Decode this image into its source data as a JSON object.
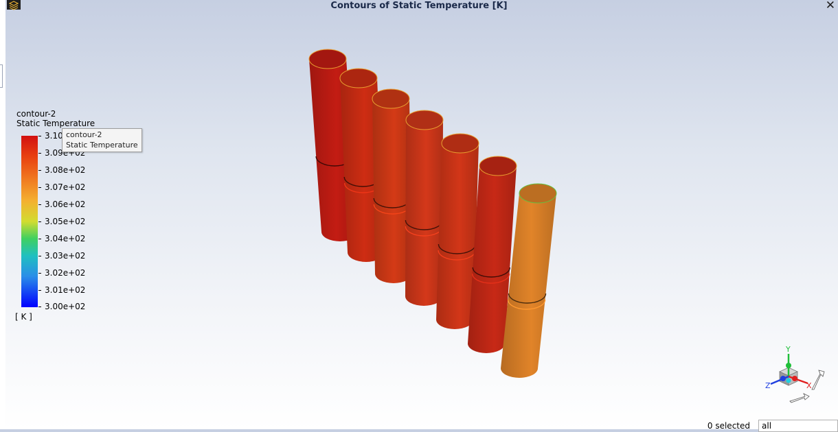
{
  "window": {
    "title": "Contours of Static Temperature [K]",
    "close_icon": "close-icon",
    "logo_icon": "app-logo-icon"
  },
  "legend": {
    "name": "contour-2",
    "variable": "Static Temperature",
    "units": "[ K ]",
    "ticks": [
      "3.10e+02",
      "3.09e+02",
      "3.08e+02",
      "3.07e+02",
      "3.06e+02",
      "3.05e+02",
      "3.04e+02",
      "3.03e+02",
      "3.02e+02",
      "3.01e+02",
      "3.00e+02"
    ],
    "colormap": [
      "#d21010",
      "#f07820",
      "#f4b030",
      "#d2dc30",
      "#40d060",
      "#20c0c0",
      "#2a8ee8",
      "#0000ff"
    ]
  },
  "tooltip": {
    "line1": "contour-2",
    "line2": "Static Temperature"
  },
  "scene": {
    "cylinders": [
      {
        "color": "#b51a12"
      },
      {
        "color": "#bf2a12"
      },
      {
        "color": "#c43614"
      },
      {
        "color": "#c43418"
      },
      {
        "color": "#c23216"
      },
      {
        "color": "#b82614"
      },
      {
        "color": "#d07a26"
      }
    ]
  },
  "triad": {
    "x_label": "X",
    "y_label": "Y",
    "z_label": "Z"
  },
  "status": {
    "selected": "0 selected",
    "filter_value": "all"
  }
}
